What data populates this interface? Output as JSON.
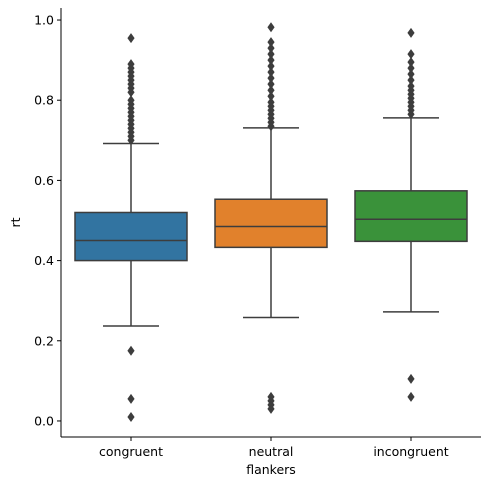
{
  "chart_data": {
    "type": "box",
    "xlabel": "flankers",
    "ylabel": "rt",
    "ylim": [
      -0.04,
      1.03
    ],
    "yticks": [
      0.0,
      0.2,
      0.4,
      0.6,
      0.8,
      1.0
    ],
    "ytick_labels": [
      "0.0",
      "0.2",
      "0.4",
      "0.6",
      "0.8",
      "1.0"
    ],
    "grid": false,
    "categories": [
      "congruent",
      "neutral",
      "incongruent"
    ],
    "colors": [
      "#3274a1",
      "#e1812c",
      "#3a923a"
    ],
    "line_color": "#3d3d3d",
    "boxes": [
      {
        "category": "congruent",
        "whisker_low": 0.237,
        "q1": 0.4,
        "median": 0.45,
        "q3": 0.52,
        "whisker_high": 0.692,
        "outliers": [
          0.01,
          0.055,
          0.175,
          0.7,
          0.71,
          0.72,
          0.73,
          0.74,
          0.75,
          0.76,
          0.77,
          0.78,
          0.79,
          0.8,
          0.82,
          0.83,
          0.84,
          0.85,
          0.86,
          0.87,
          0.88,
          0.89,
          0.955
        ]
      },
      {
        "category": "neutral",
        "whisker_low": 0.258,
        "q1": 0.433,
        "median": 0.485,
        "q3": 0.553,
        "whisker_high": 0.731,
        "outliers": [
          0.03,
          0.04,
          0.05,
          0.06,
          0.735,
          0.745,
          0.755,
          0.765,
          0.775,
          0.785,
          0.795,
          0.81,
          0.825,
          0.84,
          0.855,
          0.87,
          0.885,
          0.9,
          0.915,
          0.93,
          0.945,
          0.982
        ]
      },
      {
        "category": "incongruent",
        "whisker_low": 0.272,
        "q1": 0.448,
        "median": 0.503,
        "q3": 0.574,
        "whisker_high": 0.756,
        "outliers": [
          0.06,
          0.105,
          0.765,
          0.775,
          0.785,
          0.795,
          0.805,
          0.815,
          0.825,
          0.835,
          0.85,
          0.865,
          0.88,
          0.895,
          0.915,
          0.968
        ]
      }
    ]
  }
}
